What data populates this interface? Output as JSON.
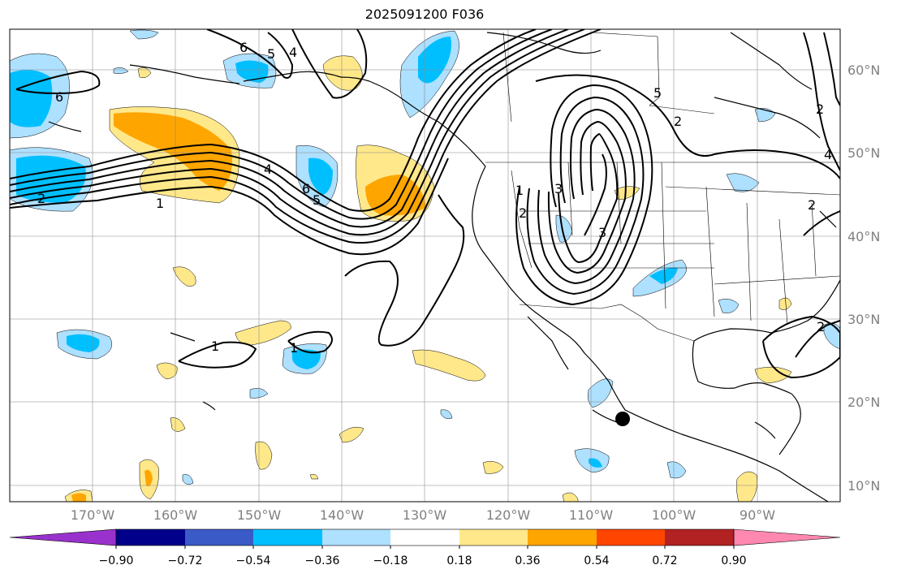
{
  "title": "2025091200 F036",
  "lat_labels": [
    "60°N",
    "50°N",
    "40°N",
    "30°N",
    "20°N",
    "10°N"
  ],
  "lon_labels": [
    "170°W",
    "160°W",
    "150°W",
    "140°W",
    "130°W",
    "120°W",
    "110°W",
    "100°W",
    "90°W"
  ],
  "colorbar": {
    "ticks": [
      "−0.90",
      "−0.72",
      "−0.54",
      "−0.36",
      "−0.18",
      "0.18",
      "0.36",
      "0.54",
      "0.72",
      "0.90"
    ],
    "colors": [
      "#9932cc",
      "#00008b",
      "#3a5bc7",
      "#00bfff",
      "#aee0ff",
      "#ffffff",
      "#ffe88a",
      "#ffa500",
      "#ff4500",
      "#b22222",
      "#ff88b0"
    ]
  },
  "contour_labels": [
    "6",
    "6",
    "5",
    "4",
    "2",
    "1",
    "4",
    "6",
    "5",
    "3",
    "2",
    "1",
    "1",
    "1",
    "2",
    "3",
    "2",
    "2",
    "4",
    "5",
    "2"
  ],
  "marker": "storm-center"
}
